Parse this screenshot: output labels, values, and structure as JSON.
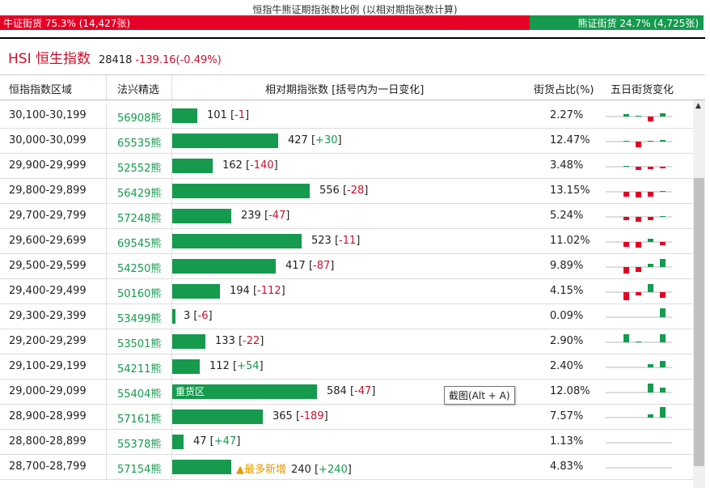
{
  "caption": "恒指牛熊证期指张数比例 (以相对期指张数计算)",
  "ratio": {
    "bull_label": "牛证街货 75.3% (14,427张)",
    "bull_share": 0.753,
    "bear_label": "熊证街货 24.7% (4,725张)",
    "bull_color": "#e60026",
    "bear_color": "#159a4e"
  },
  "index": {
    "name": "HSI 恒生指数",
    "price": "28418",
    "change": "-139.16(-0.49%)"
  },
  "columns": {
    "range": "恒指指数区域",
    "pick": "法兴精选",
    "count": "相对期指张数 [括号内为一日变化]",
    "share": "街货占比(%)",
    "trend": "五日街货变化"
  },
  "rows": [
    {
      "range": "30,100-30,199",
      "code": "56908熊",
      "count": 101,
      "change": "-1",
      "bar_label": "",
      "tag": "",
      "share": "2.27%",
      "trend": [
        0.2,
        0.1,
        -0.4,
        0.3,
        -0.15
      ]
    },
    {
      "range": "30,000-30,099",
      "code": "65535熊",
      "count": 427,
      "change": "+30",
      "bar_label": "",
      "tag": "",
      "share": "12.47%",
      "trend": [
        0.1,
        -0.5,
        0.1,
        0.15,
        0.1
      ]
    },
    {
      "range": "29,900-29,999",
      "code": "52552熊",
      "count": 162,
      "change": "-140",
      "bar_label": "",
      "tag": "",
      "share": "3.48%",
      "trend": [
        0.05,
        -0.25,
        -0.2,
        -0.15,
        -0.6
      ]
    },
    {
      "range": "29,800-29,899",
      "code": "56429熊",
      "count": 556,
      "change": "-28",
      "bar_label": "",
      "tag": "",
      "share": "13.15%",
      "trend": [
        -0.4,
        -0.5,
        -0.4,
        0.05,
        -0.5
      ]
    },
    {
      "range": "29,700-29,799",
      "code": "57248熊",
      "count": 239,
      "change": "-47",
      "bar_label": "",
      "tag": "",
      "share": "5.24%",
      "trend": [
        -0.3,
        -0.4,
        -0.3,
        0.05,
        -0.2
      ]
    },
    {
      "range": "29,600-29,699",
      "code": "69545熊",
      "count": 523,
      "change": "-11",
      "bar_label": "",
      "tag": "",
      "share": "11.02%",
      "trend": [
        -0.4,
        -0.5,
        0.3,
        -0.3,
        -0.1
      ]
    },
    {
      "range": "29,500-29,599",
      "code": "54250熊",
      "count": 417,
      "change": "-87",
      "bar_label": "",
      "tag": "",
      "share": "9.89%",
      "trend": [
        -0.6,
        -0.4,
        0.3,
        0.7,
        -0.4
      ]
    },
    {
      "range": "29,400-29,499",
      "code": "50160熊",
      "count": 194,
      "change": "-112",
      "bar_label": "",
      "tag": "",
      "share": "4.15%",
      "trend": [
        -0.7,
        -0.3,
        0.7,
        -0.5,
        -0.9
      ]
    },
    {
      "range": "29,300-29,399",
      "code": "53499熊",
      "count": 3,
      "change": "-6",
      "bar_label": "",
      "tag": "",
      "share": "0.09%",
      "trend": [
        0,
        0,
        0,
        0.8,
        -0.5
      ]
    },
    {
      "range": "29,200-29,299",
      "code": "53501熊",
      "count": 133,
      "change": "-22",
      "bar_label": "",
      "tag": "",
      "share": "2.90%",
      "trend": [
        0.7,
        0.05,
        0,
        0.7,
        -0.5
      ]
    },
    {
      "range": "29,100-29,199",
      "code": "54211熊",
      "count": 112,
      "change": "+54",
      "bar_label": "",
      "tag": "",
      "share": "2.40%",
      "trend": [
        0,
        0,
        0.3,
        0.6,
        0.8
      ]
    },
    {
      "range": "29,000-29,099",
      "code": "55404熊",
      "count": 584,
      "change": "-47",
      "bar_label": "重货区",
      "tag": "",
      "share": "12.08%",
      "trend": [
        0,
        0,
        0.8,
        0.4,
        -0.1
      ]
    },
    {
      "range": "28,900-28,999",
      "code": "57161熊",
      "count": 365,
      "change": "-189",
      "bar_label": "",
      "tag": "",
      "share": "7.57%",
      "trend": [
        0,
        0,
        0.3,
        0.9,
        -0.4
      ]
    },
    {
      "range": "28,800-28,899",
      "code": "55378熊",
      "count": 47,
      "change": "+47",
      "bar_label": "",
      "tag": "",
      "share": "1.13%",
      "trend": [
        0,
        0,
        0,
        0,
        0.9
      ]
    },
    {
      "range": "28,700-28,799",
      "code": "57154熊",
      "count": 240,
      "change": "+240",
      "bar_label": "",
      "tag": "▲最多新增",
      "share": "4.83%",
      "trend": [
        0,
        0,
        0,
        0,
        0.9
      ]
    }
  ],
  "tooltip": "截图(Alt + A)"
}
